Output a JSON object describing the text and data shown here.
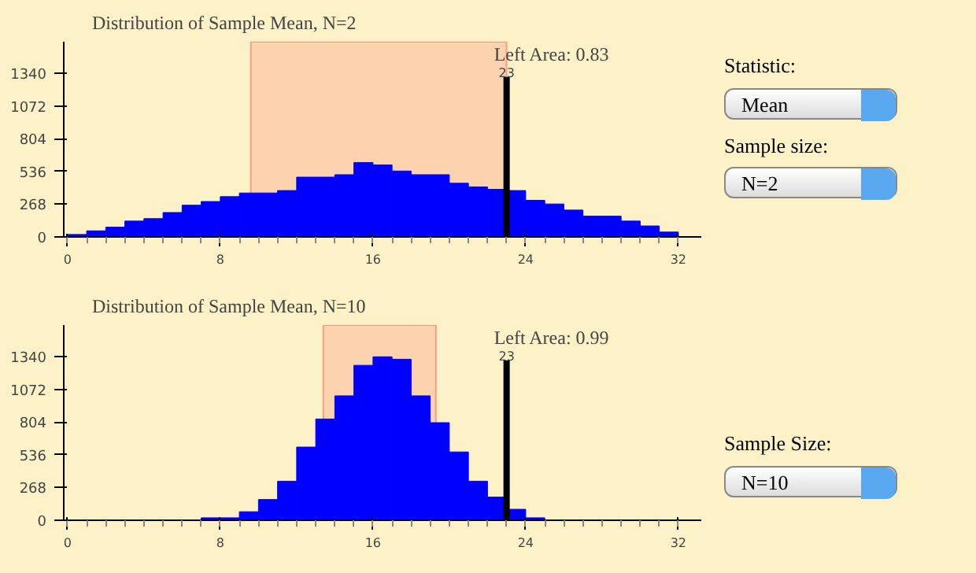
{
  "chart_data": [
    {
      "type": "histogram",
      "title": "Distribution of Sample Mean, N=2",
      "color": "#0000ff",
      "bins": [
        0,
        1,
        2,
        3,
        4,
        5,
        6,
        7,
        8,
        9,
        10,
        11,
        12,
        13,
        14,
        15,
        16,
        17,
        18,
        19,
        20,
        21,
        22,
        23,
        24,
        25,
        26,
        27,
        28,
        29,
        30,
        31,
        32
      ],
      "values": [
        20,
        50,
        80,
        130,
        150,
        200,
        260,
        290,
        330,
        360,
        360,
        380,
        490,
        490,
        510,
        610,
        590,
        540,
        510,
        510,
        440,
        410,
        390,
        380,
        300,
        270,
        220,
        170,
        170,
        130,
        90,
        40
      ],
      "xlim": [
        -0.2,
        33.2
      ],
      "ylim": [
        0,
        1600
      ],
      "xticks": [
        0,
        8,
        16,
        24,
        32
      ],
      "yticks": [
        0,
        268,
        536,
        804,
        1072,
        1340
      ],
      "ref_lines": [
        {
          "axis": "x",
          "value": 23,
          "label": "23",
          "color": "#000000"
        }
      ],
      "bands": [
        {
          "axis": "x",
          "from": 9.6,
          "to": 23.0,
          "color": "#ff0000"
        }
      ],
      "annotations": [
        "Left Area: 0.83",
        "Statistic:",
        "Mean",
        "Sample size:",
        "N=2"
      ]
    },
    {
      "type": "histogram",
      "title": "Distribution of Sample Mean, N=10",
      "color": "#0000ff",
      "bins": [
        0,
        1,
        2,
        3,
        4,
        5,
        6,
        7,
        8,
        9,
        10,
        11,
        12,
        13,
        14,
        15,
        16,
        17,
        18,
        19,
        20,
        21,
        22,
        23,
        24,
        25,
        26,
        27,
        28,
        29,
        30,
        31,
        32
      ],
      "values": [
        0,
        0,
        0,
        0,
        0,
        0,
        0,
        20,
        20,
        70,
        170,
        320,
        600,
        830,
        1020,
        1270,
        1340,
        1320,
        1020,
        800,
        560,
        320,
        190,
        90,
        20,
        0,
        0,
        0,
        0,
        0,
        0,
        0
      ],
      "xlim": [
        -0.2,
        33.2
      ],
      "ylim": [
        0,
        1600
      ],
      "xticks": [
        0,
        8,
        16,
        24,
        32
      ],
      "yticks": [
        0,
        268,
        536,
        804,
        1072,
        1340
      ],
      "ref_lines": [
        {
          "axis": "x",
          "value": 23,
          "label": "23",
          "color": "#000000"
        }
      ],
      "bands": [
        {
          "axis": "x",
          "from": 13.4,
          "to": 19.3,
          "color": "#ff0000"
        }
      ],
      "annotations": [
        "Left Area: 0.99",
        "Sample Size:",
        "N=10"
      ]
    }
  ]
}
